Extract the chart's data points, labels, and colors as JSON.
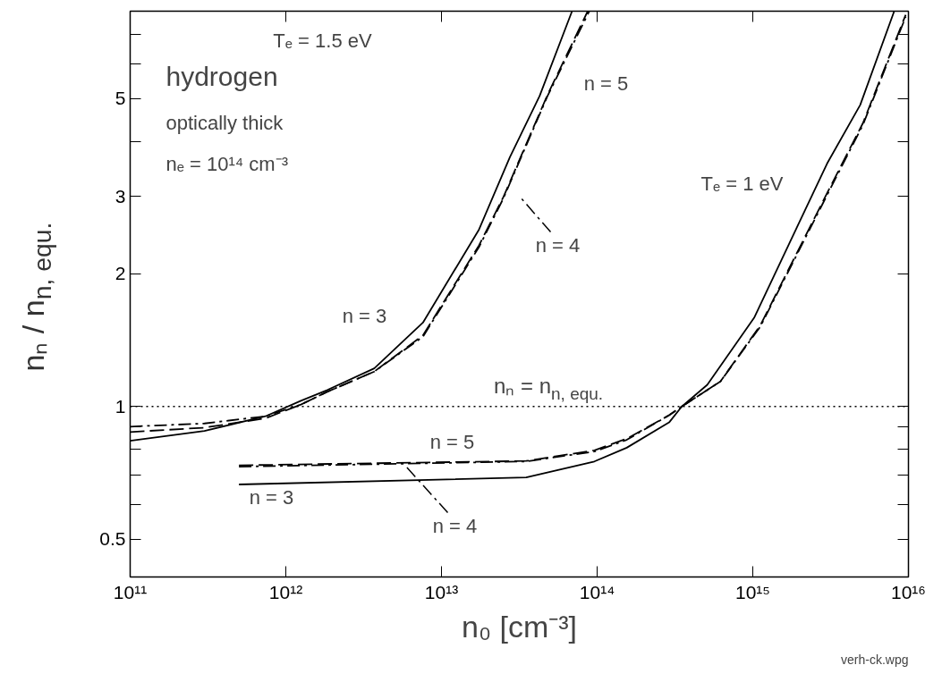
{
  "chart_data": {
    "type": "line",
    "xlabel": "n₀ [cm⁻³]",
    "ylabel": "nₙ / n$_{n, equ.}$",
    "log": "xy",
    "grid": false,
    "xlim": [
      100000000000.0,
      1e+16
    ],
    "ylim": [
      0.41,
      7.9
    ],
    "xticks": [
      {
        "value": 100000000000.0,
        "label": "10¹¹"
      },
      {
        "value": 1000000000000.0,
        "label": "10¹²"
      },
      {
        "value": 10000000000000.0,
        "label": "10¹³"
      },
      {
        "value": 100000000000000.0,
        "label": "10¹⁴"
      },
      {
        "value": 1000000000000000.0,
        "label": "10¹⁵"
      },
      {
        "value": 1e+16,
        "label": "10¹⁶"
      }
    ],
    "yticks": [
      0.5,
      {
        "value": 0.6,
        "label": null
      },
      {
        "value": 0.7,
        "label": null
      },
      {
        "value": 0.8,
        "label": null
      },
      {
        "value": 0.9,
        "label": null
      },
      1,
      2,
      3,
      {
        "value": 4,
        "label": null
      },
      5,
      {
        "value": 6,
        "label": null
      },
      {
        "value": 7,
        "label": null
      }
    ],
    "series": [
      {
        "name": "n = 3",
        "color": "#000000",
        "line_style": "solid",
        "x": [
          100000000000.0,
          300000000000.0,
          740000000000.0,
          1250000000000.0,
          1850000000000.0,
          3700000000000.0,
          7600000000000.0,
          17400000000000.0,
          27500000000000.0,
          42700000000000.0,
          69000000000000.0
        ],
        "values": [
          0.836,
          0.88,
          0.95,
          1.03,
          1.09,
          1.22,
          1.55,
          2.52,
          3.68,
          5.07,
          7.9
        ]
      },
      {
        "name": "n = 4",
        "color": "#000000",
        "line_style": "dashdot",
        "x": [
          100000000000.0,
          300000000000.0,
          740000000000.0,
          1250000000000.0,
          1850000000000.0,
          3700000000000.0,
          7600000000000.0,
          17400000000000.0,
          25000000000000.0,
          48000000000000.0,
          89000000000000.0
        ],
        "values": [
          0.9,
          0.915,
          0.95,
          1.01,
          1.08,
          1.2,
          1.44,
          2.3,
          2.97,
          5.07,
          7.9
        ]
      },
      {
        "name": "n = 5",
        "color": "#000000",
        "line_style": "dashed",
        "x": [
          100000000000.0,
          300000000000.0,
          740000000000.0,
          1250000000000.0,
          1850000000000.0,
          3700000000000.0,
          7600000000000.0,
          17400000000000.0,
          25000000000000.0,
          48000000000000.0,
          87000000000000.0
        ],
        "values": [
          0.875,
          0.895,
          0.94,
          1.01,
          1.08,
          1.2,
          1.45,
          2.32,
          2.99,
          5.1,
          7.9
        ]
      },
      {
        "name": "n = 3",
        "color": "#000000",
        "line_style": "solid",
        "x": [
          500000000000.0,
          35000000000000.0,
          96000000000000.0,
          155000000000000.0,
          290000000000000.0,
          350000000000000.0,
          510000000000000.0,
          1020000000000000.0,
          3000000000000000.0,
          4900000000000000.0,
          8100000000000000.0
        ],
        "values": [
          0.665,
          0.69,
          0.75,
          0.806,
          0.92,
          1.0,
          1.12,
          1.59,
          3.56,
          4.84,
          7.9
        ]
      },
      {
        "name": "n = 4",
        "color": "#000000",
        "line_style": "dashdot",
        "x": [
          500000000000.0,
          35000000000000.0,
          96000000000000.0,
          155000000000000.0,
          290000000000000.0,
          350000000000000.0,
          620000000000000.0,
          1120000000000000.0,
          3000000000000000.0,
          5100000000000000.0,
          9600000000000000.0
        ],
        "values": [
          0.73,
          0.75,
          0.79,
          0.84,
          0.955,
          1.0,
          1.14,
          1.52,
          3.02,
          4.36,
          7.67
        ]
      },
      {
        "name": "n = 5",
        "color": "#000000",
        "line_style": "dashed",
        "x": [
          500000000000.0,
          35000000000000.0,
          96000000000000.0,
          155000000000000.0,
          290000000000000.0,
          350000000000000.0,
          620000000000000.0,
          1120000000000000.0,
          3000000000000000.0,
          5100000000000000.0,
          9600000000000000.0
        ],
        "values": [
          0.735,
          0.752,
          0.795,
          0.845,
          0.955,
          1.0,
          1.14,
          1.53,
          3.05,
          4.4,
          7.75
        ]
      }
    ],
    "ref_lines": [
      {
        "axis": "y",
        "value": 1,
        "label": "nₙ = n$_{n, equ.}$",
        "line_style": "dotted",
        "color": "#000000"
      }
    ],
    "annotations": [
      "hydrogen",
      "optically thick",
      "nₑ = 10¹⁴ cm⁻³",
      "Tₑ = 1.5 eV",
      "Tₑ = 1 eV",
      "verh-ck.wpg"
    ]
  }
}
